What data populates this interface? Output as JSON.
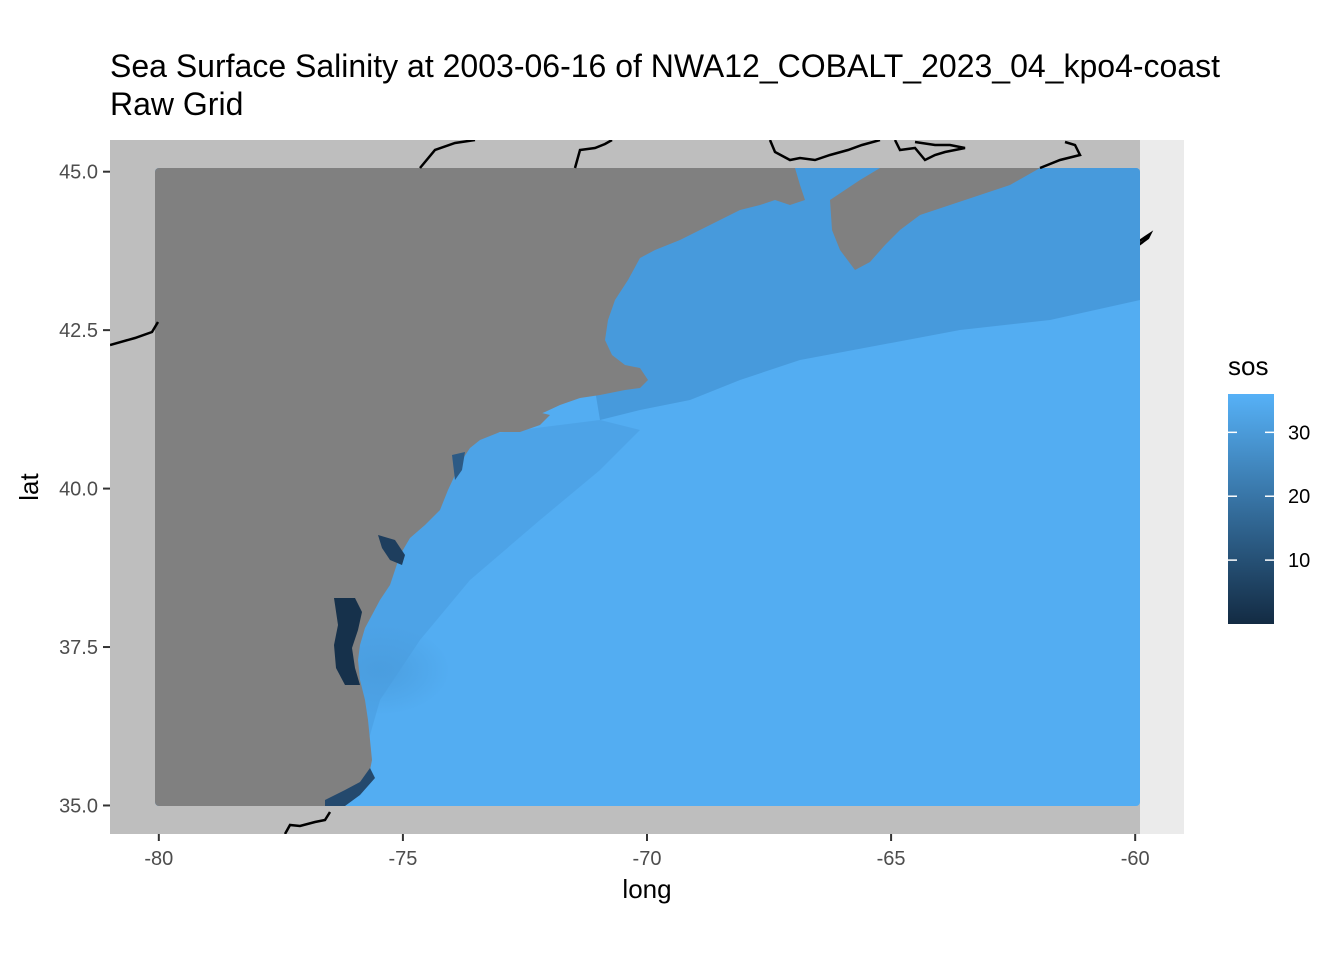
{
  "title_line1": "Sea Surface Salinity at 2003-06-16 of NWA12_COBALT_2023_04_kpo4-coast",
  "title_line2": "Raw Grid",
  "chart_data": {
    "type": "heatmap",
    "title": "Sea Surface Salinity at 2003-06-16 of NWA12_COBALT_2023_04_kpo4-coast Raw Grid",
    "xlabel": "long",
    "ylabel": "lat",
    "xlim": [
      -81,
      -59
    ],
    "ylim": [
      34.55,
      45.5
    ],
    "x_ticks": [
      -80,
      -75,
      -70,
      -65,
      -60
    ],
    "x_tick_labels": [
      "-80",
      "-75",
      "-70",
      "-65",
      "-60"
    ],
    "y_ticks": [
      35.0,
      37.5,
      40.0,
      42.5,
      45.0
    ],
    "y_tick_labels": [
      "35.0",
      "37.5",
      "40.0",
      "42.5",
      "45.0"
    ],
    "grid_extent": {
      "long": [
        -80,
        -60
      ],
      "lat": [
        35,
        45
      ]
    },
    "fill_variable": "sos",
    "legend": {
      "title": "sos",
      "position": "right",
      "ticks": [
        10,
        20,
        30
      ],
      "tick_labels": [
        "10",
        "20",
        "30"
      ],
      "range": [
        0,
        36
      ],
      "color_low": "#132B43",
      "color_high": "#56B1F7"
    },
    "colors": {
      "land": "#808080",
      "panel_background": "#EBEBEB",
      "world_map_fill": "#BEBEBE",
      "typical_open_ocean_sos": 35,
      "typical_shelf_sos": 32
    }
  }
}
